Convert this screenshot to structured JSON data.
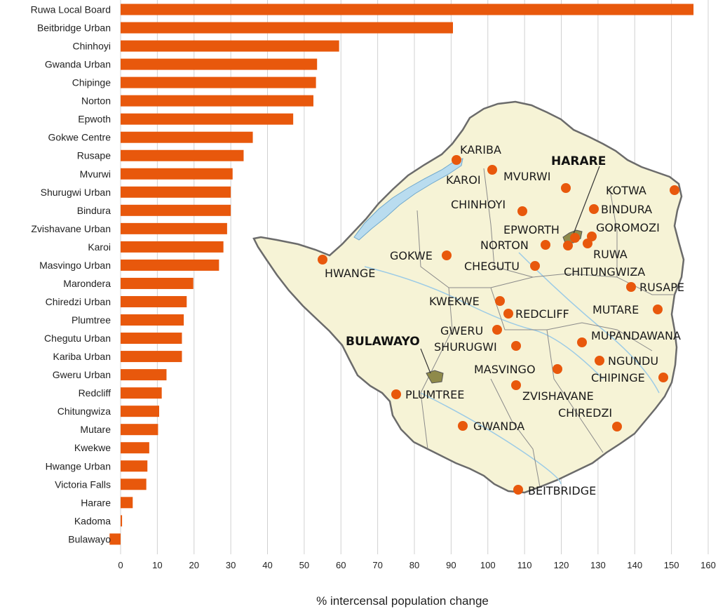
{
  "chart_data": {
    "type": "bar",
    "orientation": "horizontal",
    "categories": [
      "Ruwa Local Board",
      "Beitbridge Urban",
      "Chinhoyi",
      "Gwanda Urban",
      "Chipinge",
      "Norton",
      "Epwoth",
      "Gokwe Centre",
      "Rusape",
      "Mvurwi",
      "Shurugwi Urban",
      "Bindura",
      "Zvishavane Urban",
      "Karoi",
      "Masvingo Urban",
      "Marondera",
      "Chiredzi Urban",
      "Plumtree",
      "Chegutu Urban",
      "Kariba Urban",
      "Gweru Urban",
      "Redcliff",
      "Chitungwiza",
      "Mutare",
      "Kwekwe",
      "Hwange Urban",
      "Victoria Falls",
      "Harare",
      "Kadoma",
      "Bulawayo"
    ],
    "values": [
      156,
      90.5,
      59.5,
      53.5,
      53.2,
      52.5,
      47,
      36,
      33.5,
      30.5,
      30,
      30,
      29,
      28,
      26.8,
      19.8,
      18,
      17.2,
      16.7,
      16.7,
      12.5,
      11.2,
      10.5,
      10.2,
      7.8,
      7.3,
      7,
      3.3,
      0.4,
      -3
    ],
    "xlabel": "% intercensal population change",
    "xlim": [
      0,
      160
    ],
    "xticks": [
      0,
      10,
      20,
      30,
      40,
      50,
      60,
      70,
      80,
      90,
      100,
      110,
      120,
      130,
      140,
      150,
      160
    ],
    "grid": "vertical",
    "colors": {
      "bar": "#e8580c",
      "grid": "#d0d0d0",
      "map_fill": "#f6f3d6",
      "map_border": "#6b6b6b",
      "water": "#b9dcef",
      "marker": "#e8580c",
      "city_area": "#8f8a4a"
    }
  },
  "map": {
    "labels": [
      {
        "text": "KARIBA",
        "marker": true
      },
      {
        "text": "KAROI",
        "marker": true
      },
      {
        "text": "MVURWI",
        "marker": true
      },
      {
        "text": "HARARE",
        "marker": false
      },
      {
        "text": "KOTWA",
        "marker": true
      },
      {
        "text": "CHINHOYI",
        "marker": true
      },
      {
        "text": "BINDURA",
        "marker": true
      },
      {
        "text": "EPWORTH",
        "marker": true
      },
      {
        "text": "GOROMOZI",
        "marker": true
      },
      {
        "text": "NORTON",
        "marker": true
      },
      {
        "text": "RUWA",
        "marker": true
      },
      {
        "text": "GOKWE",
        "marker": true
      },
      {
        "text": "CHEGUTU",
        "marker": true
      },
      {
        "text": "CHITUNGWIZA",
        "marker": true
      },
      {
        "text": "HWANGE",
        "marker": true
      },
      {
        "text": "RUSAPE",
        "marker": true
      },
      {
        "text": "KWEKWE",
        "marker": true
      },
      {
        "text": "REDCLIFF",
        "marker": true
      },
      {
        "text": "MUTARE",
        "marker": true
      },
      {
        "text": "GWERU",
        "marker": true
      },
      {
        "text": "MUPANDAWANA",
        "marker": true
      },
      {
        "text": "BULAWAYO",
        "marker": false
      },
      {
        "text": "SHURUGWI",
        "marker": true
      },
      {
        "text": "NGUNDU",
        "marker": true
      },
      {
        "text": "MASVINGO",
        "marker": true
      },
      {
        "text": "CHIPINGE",
        "marker": true
      },
      {
        "text": "PLUMTREE",
        "marker": true
      },
      {
        "text": "ZVISHAVANE",
        "marker": true
      },
      {
        "text": "CHIREDZI",
        "marker": true
      },
      {
        "text": "GWANDA",
        "marker": true
      },
      {
        "text": "BEITBRIDGE",
        "marker": true
      }
    ]
  }
}
